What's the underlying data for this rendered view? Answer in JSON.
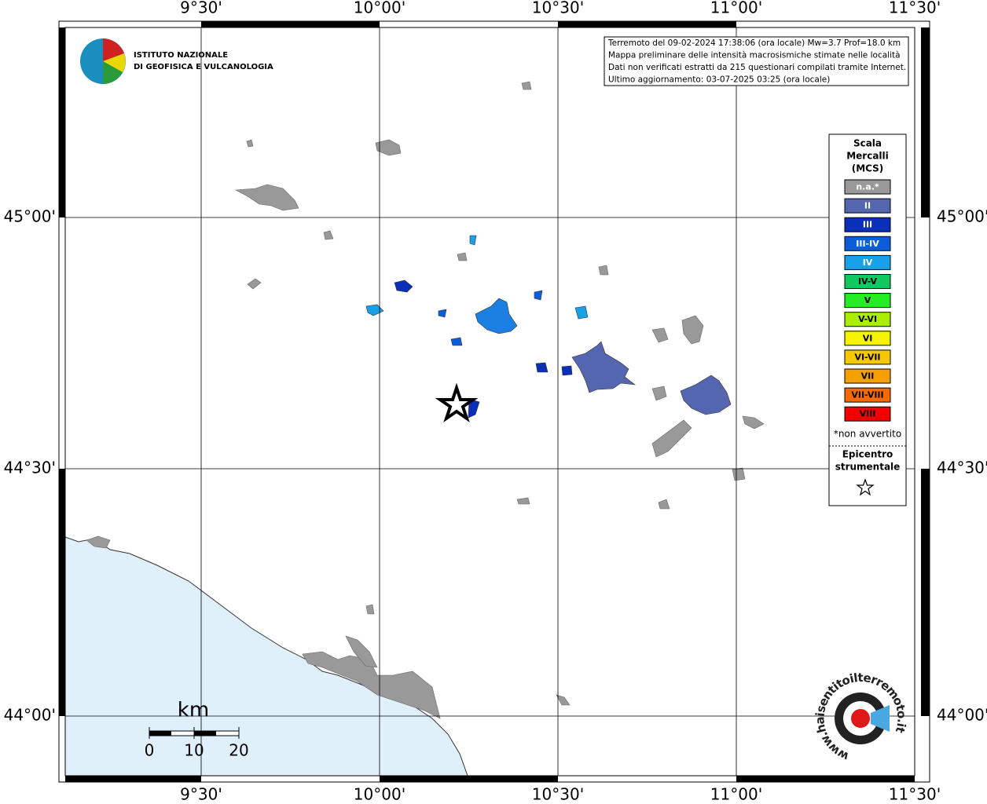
{
  "map": {
    "lon_labels": [
      "9°30'",
      "10°00'",
      "10°30'",
      "11°00'",
      "11°30'"
    ],
    "lat_labels": [
      "45°00'",
      "44°30'",
      "44°00'"
    ],
    "logo": {
      "line1": "ISTITUTO NAZIONALE",
      "line2": "DI GEOFISICA E VULCANOLOGIA"
    },
    "info": [
      "Terremoto del 09-02-2024 17:38:06 (ora locale) Mw=3.7 Prof=18.0 km",
      "Mappa preliminare delle intensità macrosismiche stimate nelle località",
      "Dati non verificati estratti da 215 questionari compilati tramite Internet.",
      "Ultimo aggiornamento: 03-07-2025 03:25 (ora locale)"
    ],
    "legend": {
      "title": [
        "Scala",
        "Mercalli",
        "(MCS)"
      ],
      "items": [
        {
          "label": "n.a.*",
          "color": "#999999",
          "text_color": "#ffffff"
        },
        {
          "label": "II",
          "color": "#5566b0",
          "text_color": "#ffffff"
        },
        {
          "label": "III",
          "color": "#0a2fb8",
          "text_color": "#ffffff"
        },
        {
          "label": "III-IV",
          "color": "#0a5fd8",
          "text_color": "#ffffff"
        },
        {
          "label": "IV",
          "color": "#1aa0e6",
          "text_color": "#ffffff"
        },
        {
          "label": "IV-V",
          "color": "#10c860",
          "text_color": "#000000"
        },
        {
          "label": "V",
          "color": "#22ee22",
          "text_color": "#000000"
        },
        {
          "label": "V-VI",
          "color": "#aaee00",
          "text_color": "#000000"
        },
        {
          "label": "VI",
          "color": "#f5f500",
          "text_color": "#000000"
        },
        {
          "label": "VI-VII",
          "color": "#f5c800",
          "text_color": "#000000"
        },
        {
          "label": "VII",
          "color": "#f5a000",
          "text_color": "#000000"
        },
        {
          "label": "VII-VIII",
          "color": "#f56a00",
          "text_color": "#000000"
        },
        {
          "label": "VIII",
          "color": "#f50000",
          "text_color": "#000000"
        }
      ],
      "note": "*non avvertito",
      "epicenter": [
        "Epicentro",
        "strumentale"
      ]
    },
    "scale": {
      "unit": "km",
      "labels": [
        "0",
        "10",
        "20"
      ]
    },
    "site_logo": "www.haisentitoilterremoto.it"
  }
}
